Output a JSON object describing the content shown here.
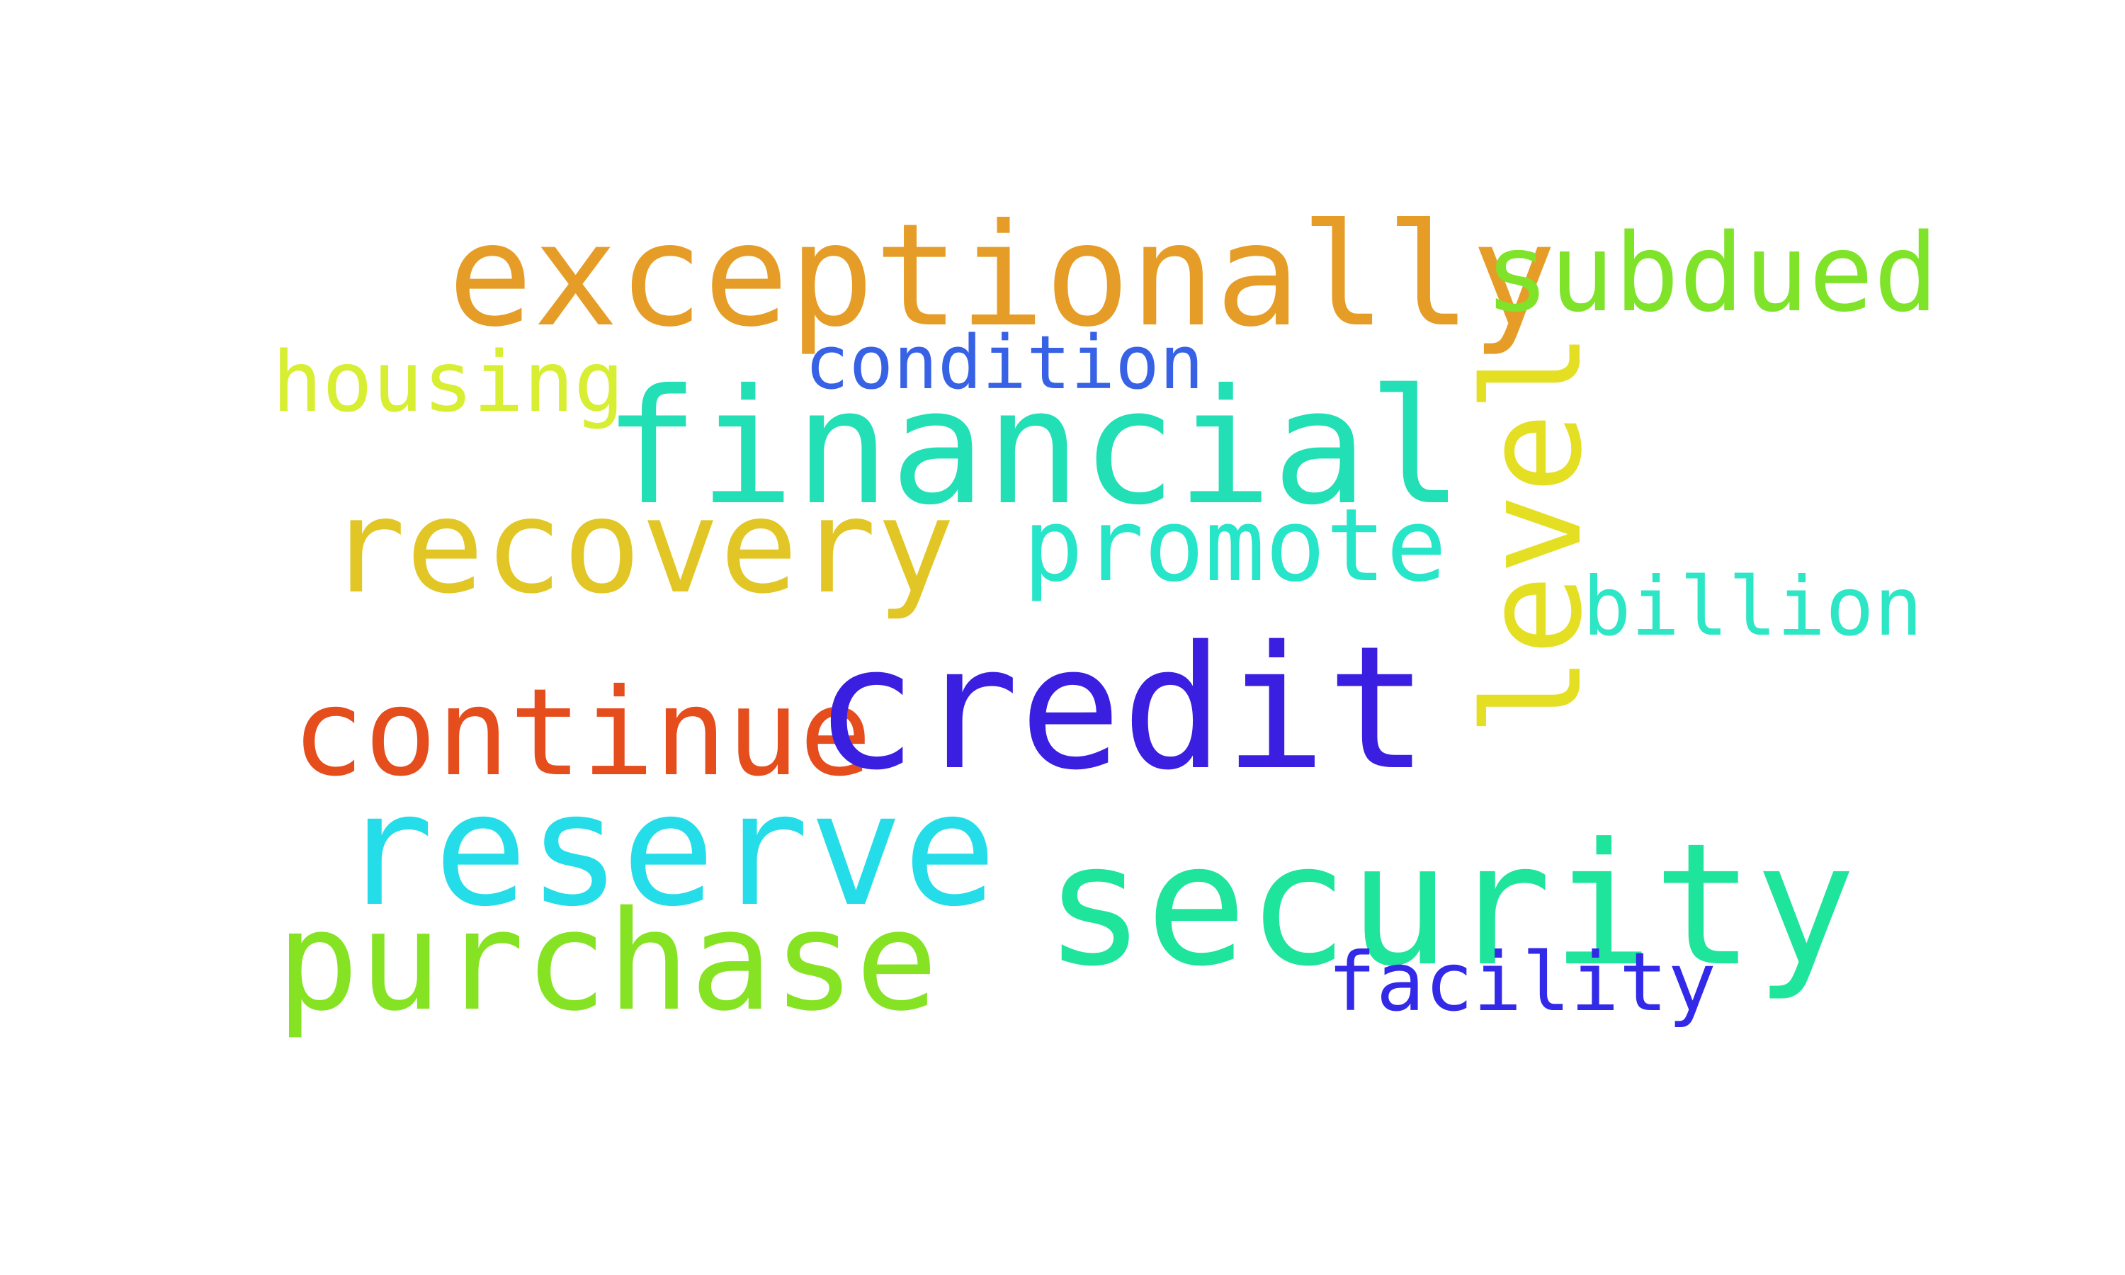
{
  "words": [
    {
      "text": "exceptionally",
      "color": "#e59d28"
    },
    {
      "text": "subdued",
      "color": "#7fe32a"
    },
    {
      "text": "housing",
      "color": "#d7ee33"
    },
    {
      "text": "condition",
      "color": "#3862e6"
    },
    {
      "text": "financial",
      "color": "#22dfb6"
    },
    {
      "text": "level",
      "color": "#e4df23"
    },
    {
      "text": "recovery",
      "color": "#e2c626"
    },
    {
      "text": "promote",
      "color": "#27e5c8"
    },
    {
      "text": "billion",
      "color": "#2de6c5"
    },
    {
      "text": "continue",
      "color": "#e54d1d"
    },
    {
      "text": "credit",
      "color": "#3b1fe0"
    },
    {
      "text": "reserve",
      "color": "#25dde8"
    },
    {
      "text": "security",
      "color": "#1fe49c"
    },
    {
      "text": "purchase",
      "color": "#86e324"
    },
    {
      "text": "facility",
      "color": "#3329e8"
    }
  ]
}
